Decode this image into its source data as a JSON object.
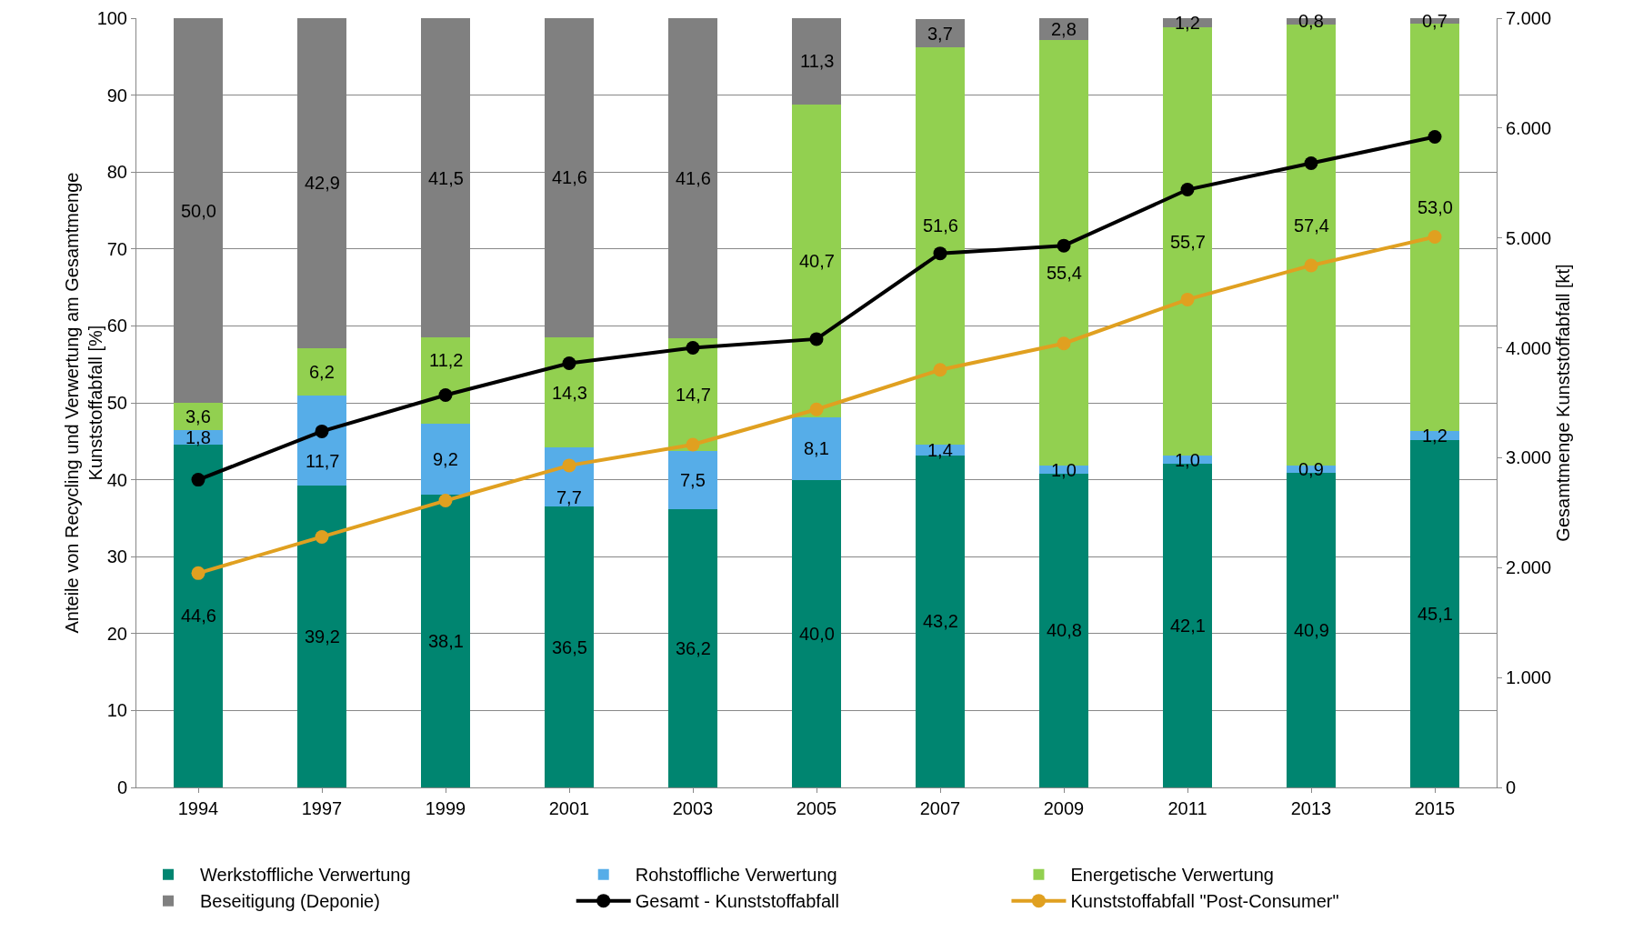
{
  "chart_data": {
    "type": "bar",
    "stacked": true,
    "categories": [
      "1994",
      "1997",
      "1999",
      "2001",
      "2003",
      "2005",
      "2007",
      "2009",
      "2011",
      "2013",
      "2015"
    ],
    "ylabel": "Anteile von Recycling und Verwertung am Gesamtmenge Kunststoffabfall [%]",
    "y2label": "Gesamtmenge Kunststoffabfall [kt]",
    "ylim": [
      0,
      100
    ],
    "yticks": [
      0,
      10,
      20,
      30,
      40,
      50,
      60,
      70,
      80,
      90,
      100
    ],
    "y2lim": [
      0,
      7000
    ],
    "y2ticks": [
      0,
      {
        "value": 1000,
        "label": "1.000"
      },
      {
        "value": 2000,
        "label": "2.000"
      },
      {
        "value": 3000,
        "label": "3.000"
      },
      {
        "value": 4000,
        "label": "4.000"
      },
      {
        "value": 5000,
        "label": "5.000"
      },
      {
        "value": 6000,
        "label": "6.000"
      },
      {
        "value": 7000,
        "label": "7.000"
      }
    ],
    "grid": "y",
    "legend": "bottom",
    "series": [
      {
        "name": "Werkstoffliche Verwertung",
        "color": "#008570",
        "values": [
          44.6,
          39.2,
          38.1,
          36.5,
          36.2,
          40.0,
          43.2,
          40.8,
          42.1,
          40.9,
          45.1
        ],
        "value_labels": [
          "44,6",
          "39,2",
          "38,1",
          "36,5",
          "36,2",
          "40,0",
          "43,2",
          "40,8",
          "42,1",
          "40,9",
          "45,1"
        ]
      },
      {
        "name": "Rohstoffliche Verwertung",
        "color": "#56ade8",
        "values": [
          1.8,
          11.7,
          9.2,
          7.7,
          7.5,
          8.1,
          1.4,
          1.0,
          1.0,
          0.9,
          1.2
        ],
        "value_labels": [
          "1,8",
          "11,7",
          "9,2",
          "7,7",
          "7,5",
          "8,1",
          "1,4",
          "1,0",
          "1,0",
          "0,9",
          "1,2"
        ]
      },
      {
        "name": "Energetische Verwertung",
        "color": "#92d050",
        "values": [
          3.6,
          6.2,
          11.2,
          14.3,
          14.7,
          40.7,
          51.6,
          55.4,
          55.7,
          57.4,
          53.0
        ],
        "value_labels": [
          "3,6",
          "6,2",
          "11,2",
          "14,3",
          "14,7",
          "40,7",
          "51,6",
          "55,4",
          "55,7",
          "57,4",
          "53,0"
        ]
      },
      {
        "name": "Beseitigung (Deponie)",
        "color": "#808080",
        "values": [
          50.0,
          42.9,
          41.5,
          41.6,
          41.6,
          11.3,
          3.7,
          2.8,
          1.2,
          0.8,
          0.7
        ],
        "value_labels": [
          "50,0",
          "42,9",
          "41,5",
          "41,6",
          "41,6",
          "11,3",
          "3,7",
          "2,8",
          "1,2",
          "0,8",
          "0,7"
        ]
      },
      {
        "name": "Gesamt - Kunststoffabfall",
        "type": "line",
        "axis": "y2",
        "color": "#000000",
        "marker": "circle",
        "values": [
          2800,
          3240,
          3570,
          3860,
          4000,
          4080,
          4860,
          4930,
          5440,
          5680,
          5920
        ]
      },
      {
        "name": "Kunststoffabfall \"Post-Consumer\"",
        "type": "line",
        "axis": "y2",
        "color": "#e0a020",
        "marker": "circle",
        "values": [
          1950,
          2280,
          2610,
          2930,
          3120,
          3440,
          3800,
          4040,
          4440,
          4750,
          5010
        ]
      }
    ]
  }
}
